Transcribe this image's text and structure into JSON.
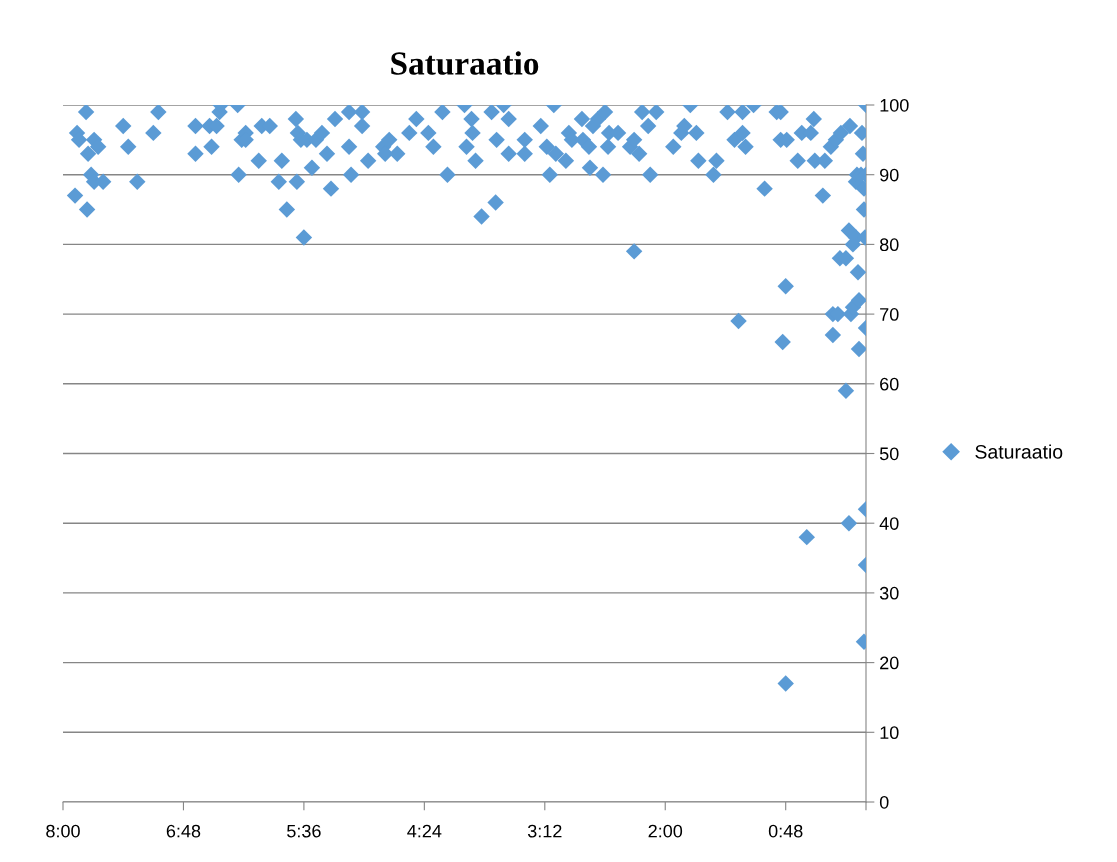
{
  "chart_data": {
    "type": "scatter",
    "title": "Saturaatio",
    "legend": "right",
    "grid": "y",
    "marker": "diamond",
    "xlim": [
      8,
      0
    ],
    "xticks": [
      {
        "value": 8,
        "label": "8:00"
      },
      {
        "value": 6.8,
        "label": "6:48"
      },
      {
        "value": 5.6,
        "label": "5:36"
      },
      {
        "value": 4.4,
        "label": "4:24"
      },
      {
        "value": 3.2,
        "label": "3:12"
      },
      {
        "value": 2.0,
        "label": "2:00"
      },
      {
        "value": 0.8,
        "label": "0:48"
      },
      {
        "value": 0,
        "label": null
      }
    ],
    "ylim": [
      0,
      100
    ],
    "yticks": [
      0,
      10,
      20,
      30,
      40,
      50,
      60,
      70,
      80,
      90,
      100
    ],
    "series": [
      {
        "name": "Saturaatio",
        "color": "#5b9bd5",
        "x": [
          7.86,
          7.88,
          7.84,
          7.77,
          7.76,
          7.75,
          7.72,
          7.69,
          7.69,
          7.65,
          7.6,
          7.4,
          7.35,
          7.26,
          7.1,
          7.05,
          6.68,
          6.68,
          6.54,
          6.52,
          6.47,
          6.44,
          6.43,
          6.26,
          6.25,
          6.22,
          6.18,
          6.18,
          6.05,
          6.02,
          5.94,
          5.85,
          5.82,
          5.77,
          5.68,
          5.67,
          5.66,
          5.63,
          5.6,
          5.57,
          5.52,
          5.48,
          5.42,
          5.37,
          5.33,
          5.29,
          5.15,
          5.15,
          5.13,
          5.02,
          5.02,
          4.96,
          4.81,
          4.79,
          4.75,
          4.67,
          4.55,
          4.48,
          4.36,
          4.31,
          4.22,
          4.17,
          4.0,
          3.98,
          3.93,
          3.92,
          3.89,
          3.83,
          3.73,
          3.68,
          3.69,
          3.61,
          3.56,
          3.56,
          3.4,
          3.4,
          3.24,
          3.18,
          3.15,
          3.11,
          3.09,
          2.99,
          2.96,
          2.93,
          2.83,
          2.82,
          2.76,
          2.75,
          2.72,
          2.67,
          2.62,
          2.6,
          2.57,
          2.56,
          2.47,
          2.35,
          2.31,
          2.31,
          2.26,
          2.23,
          2.17,
          2.15,
          2.09,
          1.92,
          1.84,
          1.81,
          1.75,
          1.69,
          1.67,
          1.52,
          1.49,
          1.38,
          1.31,
          1.27,
          1.23,
          1.23,
          1.2,
          1.12,
          1.01,
          0.89,
          0.85,
          0.85,
          0.83,
          0.8,
          0.8,
          0.79,
          0.68,
          0.64,
          0.59,
          0.55,
          0.52,
          0.51,
          0.43,
          0.41,
          0.35,
          0.33,
          0.33,
          0.3,
          0.28,
          0.26,
          0.25,
          0.2,
          0.2,
          0.17,
          0.17,
          0.16,
          0.15,
          0.13,
          0.13,
          0.1,
          0.1,
          0.09,
          0.08,
          0.07,
          0.07,
          0.05,
          0.04,
          0.03,
          0.02,
          0.02,
          0.01,
          0.0,
          0.0,
          0.0,
          0.0,
          0.0,
          0.02
        ],
        "values": [
          96,
          87,
          95,
          99,
          85,
          93,
          90,
          95,
          89,
          94,
          89,
          97,
          94,
          89,
          96,
          99,
          97,
          93,
          97,
          94,
          97,
          99,
          100,
          100,
          90,
          95,
          96,
          95,
          92,
          97,
          97,
          89,
          92,
          85,
          98,
          89,
          96,
          95,
          81,
          95,
          91,
          95,
          96,
          93,
          88,
          98,
          99,
          94,
          90,
          99,
          97,
          92,
          94,
          93,
          95,
          93,
          96,
          98,
          96,
          94,
          99,
          90,
          100,
          94,
          98,
          96,
          92,
          84,
          99,
          95,
          86,
          100,
          98,
          93,
          95,
          93,
          97,
          94,
          90,
          100,
          93,
          92,
          96,
          95,
          98,
          95,
          94,
          91,
          97,
          98,
          90,
          99,
          94,
          96,
          96,
          94,
          95,
          79,
          93,
          99,
          97,
          90,
          99,
          94,
          96,
          97,
          100,
          96,
          92,
          90,
          92,
          99,
          95,
          69,
          99,
          96,
          94,
          100,
          88,
          99,
          99,
          95,
          66,
          74,
          17,
          95,
          92,
          96,
          38,
          96,
          98,
          92,
          87,
          92,
          94,
          70,
          67,
          95,
          70,
          78,
          96,
          59,
          78,
          82,
          40,
          97,
          70,
          80,
          71,
          81,
          89,
          90,
          76,
          72,
          65,
          90,
          96,
          93,
          88,
          85,
          81,
          100,
          90,
          68,
          42,
          34,
          23
        ]
      }
    ]
  }
}
